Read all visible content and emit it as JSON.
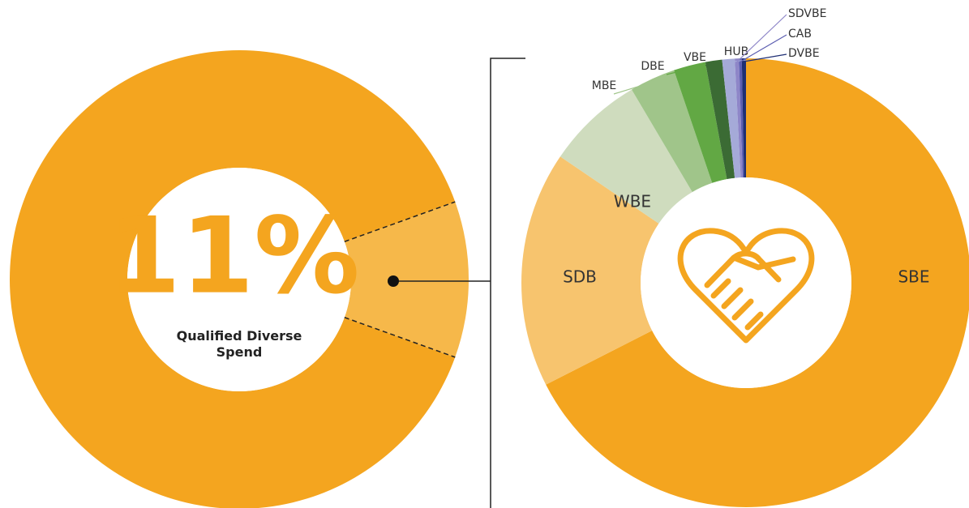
{
  "chart_data": [
    {
      "type": "donut",
      "categories": [
        null,
        "Qualified Diverse Spend"
      ],
      "values": [
        89,
        11
      ],
      "value_labels": [
        null,
        "11%"
      ],
      "colors": [
        "#f4a51f",
        "#f6b84a"
      ]
    },
    {
      "type": "donut",
      "categories": [
        "SBE",
        "SDB",
        "WBE",
        "MBE",
        "DBE",
        "VBE",
        "HUB",
        "SDVBE",
        "CAB",
        "DVBE"
      ],
      "values": [
        67.5,
        17,
        7,
        3.3,
        2.3,
        1.2,
        0.9,
        0.3,
        0.2,
        0.3
      ],
      "colors": [
        "#f4a51f",
        "#f7c46e",
        "#cfdcbe",
        "#a0c58a",
        "#62a844",
        "#3b6b34",
        "#a5aad8",
        "#8e86c8",
        "#5b5db0",
        "#1f2f74"
      ]
    }
  ]
}
